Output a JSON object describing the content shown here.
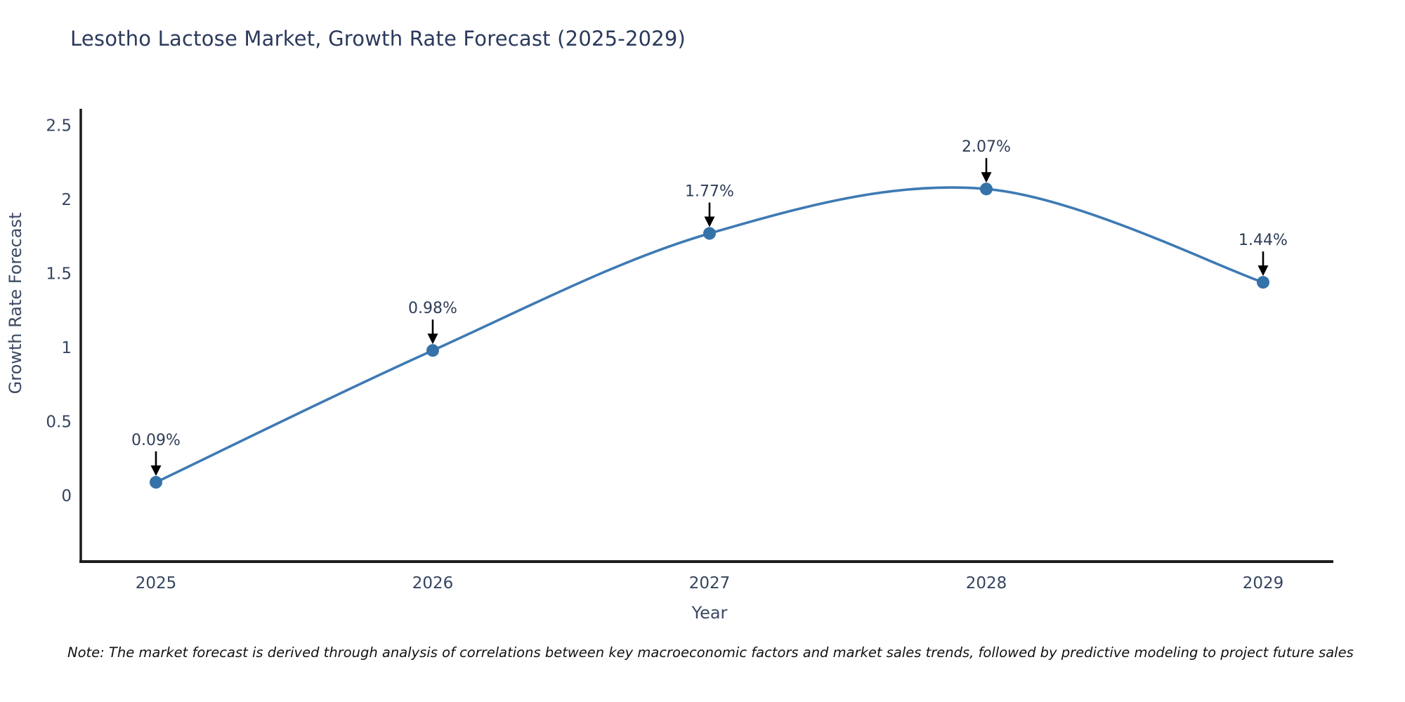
{
  "note": "Note: The market forecast is derived through analysis of correlations between key macroeconomic factors and market sales trends, followed by predictive modeling to project future sales",
  "colors": {
    "line": "#3e7ab4",
    "marker": "#3572a8",
    "axis": "#1c1c1c",
    "arrow": "#000000",
    "text": "#36455f"
  },
  "chart_data": {
    "type": "line",
    "title": "Lesotho Lactose Market, Growth Rate Forecast (2025-2029)",
    "xlabel": "Year",
    "ylabel": "Growth Rate Forecast",
    "x": [
      2025,
      2026,
      2027,
      2028,
      2029
    ],
    "y": [
      0.09,
      0.98,
      1.77,
      2.07,
      1.44
    ],
    "point_labels": [
      "0.09%",
      "0.98%",
      "1.77%",
      "2.07%",
      "1.44%"
    ],
    "yticks": [
      0,
      0.5,
      1,
      1.5,
      2,
      2.5
    ],
    "ylim": [
      -0.45,
      2.6
    ],
    "grid": false,
    "legend": "none",
    "line_shape": "spline",
    "annotations": "value labels with downward arrows above each marker"
  }
}
